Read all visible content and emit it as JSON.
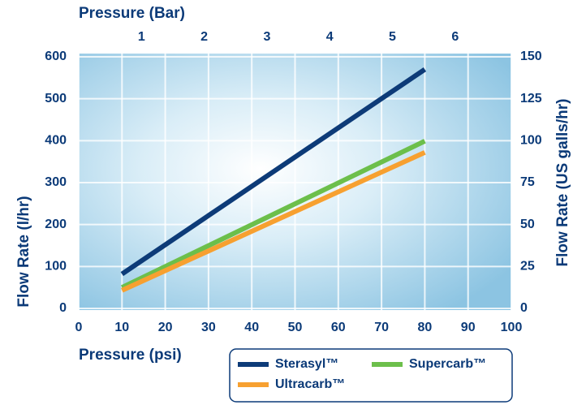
{
  "chart_data": {
    "type": "line",
    "xlabel": "Pressure (psi)",
    "x2label": "Pressure (Bar)",
    "ylabel": "Flow Rate (l/hr)",
    "y2label": "Flow Rate (US galls/hr)",
    "x": [
      10,
      80
    ],
    "series": [
      {
        "name": "Sterasyl™",
        "color": "#0d3b78",
        "values": [
          82,
          570
        ]
      },
      {
        "name": "Supercarb™",
        "color": "#6cbf4b",
        "values": [
          50,
          399
        ]
      },
      {
        "name": "Ultracarb™",
        "color": "#f7a030",
        "values": [
          43,
          372
        ]
      }
    ],
    "xlim": [
      0,
      100
    ],
    "xticks": [
      0,
      10,
      20,
      30,
      40,
      50,
      60,
      70,
      80,
      90,
      100
    ],
    "x2lim": [
      0,
      6.895
    ],
    "x2ticks": [
      1,
      2,
      3,
      4,
      5,
      6
    ],
    "ylim": [
      0,
      600
    ],
    "yticks": [
      0,
      100,
      200,
      300,
      400,
      500,
      600
    ],
    "y2lim": [
      0,
      150
    ],
    "y2ticks": [
      0,
      25,
      50,
      75,
      100,
      125,
      150
    ],
    "grid": true,
    "legend": "bottom"
  }
}
